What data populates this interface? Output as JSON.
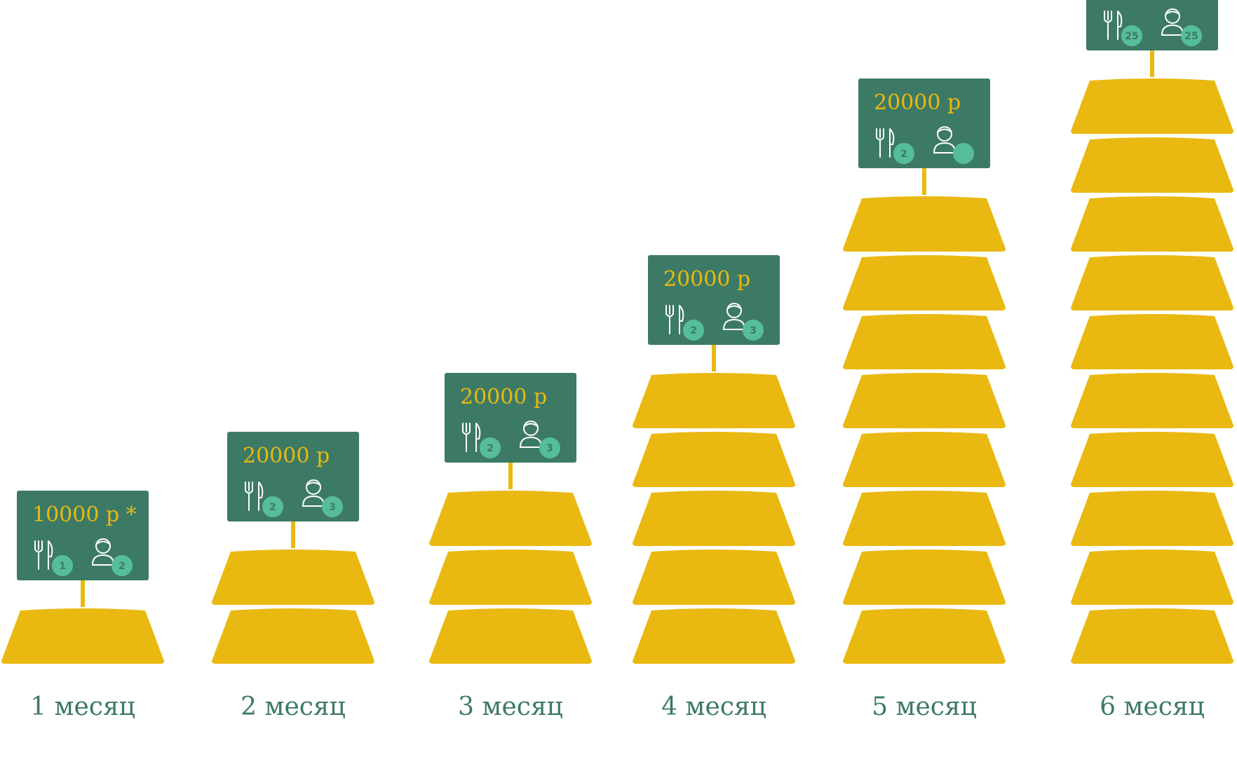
{
  "colors": {
    "gold": "#e9b911",
    "sign_green": "#3d7a66",
    "badge_green": "#56bd9a",
    "icon_white": "#ffffff",
    "label_green": "#3d7a66",
    "background": "#ffffff"
  },
  "columns": [
    {
      "month_label": "1 месяц",
      "price": "10000 р *",
      "bars": 1,
      "cutlery_count": "1",
      "person_count": "2"
    },
    {
      "month_label": "2 месяц",
      "price": "20000 р",
      "bars": 2,
      "cutlery_count": "2",
      "person_count": "3"
    },
    {
      "month_label": "3 месяц",
      "price": "20000 р",
      "bars": 3,
      "cutlery_count": "2",
      "person_count": "3"
    },
    {
      "month_label": "4 месяц",
      "price": "20000 р",
      "bars": 5,
      "cutlery_count": "2",
      "person_count": "3"
    },
    {
      "month_label": "5 месяц",
      "price": "20000 р",
      "bars": 8,
      "cutlery_count": "2",
      "person_count": ""
    },
    {
      "month_label": "6 месяц",
      "price": "",
      "bars": 10,
      "cutlery_count": "25",
      "person_count": "25"
    }
  ],
  "icons": {
    "cutlery": "fork-knife-icon",
    "person": "person-icon"
  }
}
